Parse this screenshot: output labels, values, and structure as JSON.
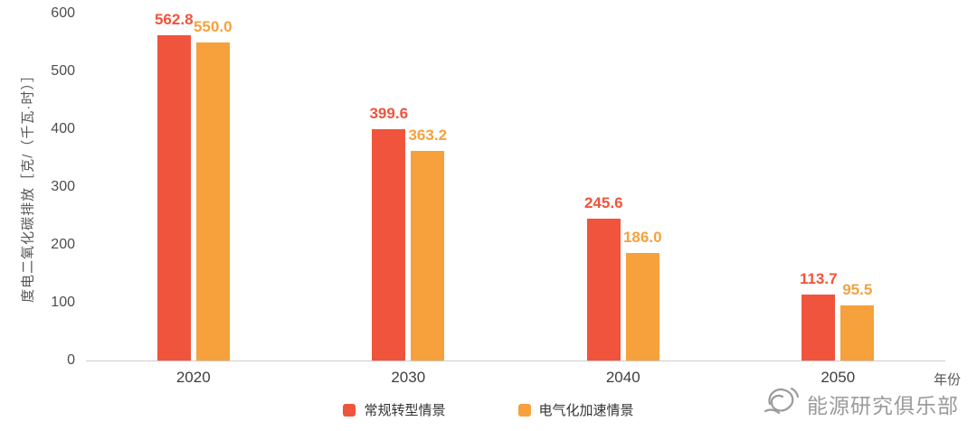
{
  "chart_data": {
    "type": "bar",
    "title": "",
    "categories": [
      "2020",
      "2030",
      "2040",
      "2050"
    ],
    "series": [
      {
        "name": "常规转型情景",
        "color": "#F0543C",
        "values": [
          562.8,
          399.6,
          245.6,
          113.7
        ],
        "value_labels": [
          "562.8",
          "399.6",
          "245.6",
          "113.7"
        ]
      },
      {
        "name": "电气化加速情景",
        "color": "#F6A13C",
        "values": [
          550.0,
          363.2,
          186.0,
          95.5
        ],
        "value_labels": [
          "550.0",
          "363.2",
          "186.0",
          "95.5"
        ]
      }
    ],
    "xlabel": "年份",
    "ylabel": "度电二氧化碳排放［克/（千瓦·时）］",
    "ylim": [
      0,
      600
    ],
    "yticks": [
      0,
      100,
      200,
      300,
      400,
      500,
      600
    ],
    "grid": false,
    "legend_position": "bottom"
  },
  "watermark": {
    "text": "能源研究俱乐部"
  }
}
